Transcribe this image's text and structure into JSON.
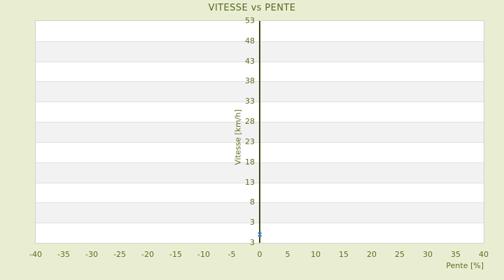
{
  "chart_data": {
    "type": "scatter",
    "title": "VITESSE vs PENTE",
    "xlabel": "Pente [%]",
    "ylabel": "Vitesse [km/h]",
    "xlim": [
      -40,
      40
    ],
    "ylim": [
      -2,
      53
    ],
    "x_ticks": [
      -40,
      -35,
      -30,
      -25,
      -20,
      -15,
      -10,
      -5,
      0,
      5,
      10,
      15,
      20,
      25,
      30,
      35,
      40
    ],
    "y_ticks": [
      53,
      48,
      43,
      38,
      33,
      28,
      23,
      18,
      13,
      8,
      3
    ],
    "y_axis_bottom_label": "3",
    "grid": "horizontal-stripes",
    "legend": false,
    "series": [
      {
        "name": "vitesse-points",
        "marker": "plus",
        "color": "#3b7bc0",
        "points": [
          [
            0,
            0.4
          ],
          [
            0,
            -0.3
          ]
        ]
      }
    ],
    "colors": {
      "background": "#e9eed3",
      "band_even": "#ffffff",
      "band_odd": "#f2f2f2",
      "gridline": "#e0e0e0",
      "plot_border": "#d2d2cb",
      "zero_axis": "#3d4b0e",
      "text": "#5d6e20",
      "title_text": "#55681a"
    }
  }
}
